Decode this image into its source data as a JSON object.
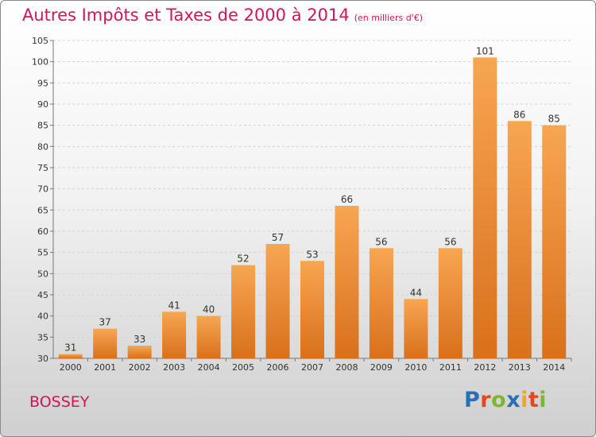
{
  "header": {
    "title": "Autres Impôts et Taxes de 2000 à 2014",
    "subtitle": "(en milliers d'€)"
  },
  "footer": {
    "place": "BOSSEY",
    "logo_text": "Proxiti"
  },
  "colors": {
    "title": "#d4145a",
    "bar_top": "#f7a652",
    "bar_bottom": "#d9701b",
    "logo_letters": [
      "#2a6fb5",
      "#e8471c",
      "#7cb82f",
      "#2a6fb5",
      "#f2a81d",
      "#e8471c",
      "#7cb82f"
    ]
  },
  "chart_data": {
    "type": "bar",
    "title": "Autres Impôts et Taxes de 2000 à 2014",
    "subtitle": "(en milliers d'€)",
    "categories": [
      "2000",
      "2001",
      "2002",
      "2003",
      "2004",
      "2005",
      "2006",
      "2007",
      "2008",
      "2009",
      "2010",
      "2011",
      "2012",
      "2013",
      "2014"
    ],
    "values": [
      31,
      37,
      33,
      41,
      40,
      52,
      57,
      53,
      66,
      56,
      44,
      56,
      101,
      86,
      85
    ],
    "data_labels": [
      "31",
      "37",
      "33",
      "41",
      "40",
      "52",
      "57",
      "53",
      "66",
      "56",
      "44",
      "56",
      "101",
      "86",
      "85"
    ],
    "yticks": [
      30,
      35,
      40,
      45,
      50,
      55,
      60,
      65,
      70,
      75,
      80,
      85,
      90,
      95,
      100,
      105
    ],
    "ylim": [
      30,
      105
    ],
    "xlabel": "",
    "ylabel": "",
    "grid": true,
    "legend": "none"
  }
}
